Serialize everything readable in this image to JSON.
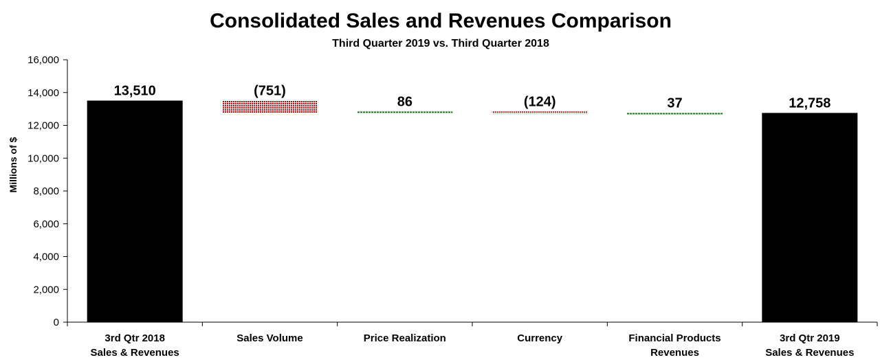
{
  "chart_data": {
    "type": "bar",
    "subtype": "waterfall",
    "title": "Consolidated Sales and Revenues Comparison",
    "subtitle": "Third Quarter 2019 vs. Third Quarter 2018",
    "ylabel": "Millions of $",
    "xlabel": "",
    "ylim": [
      0,
      16000
    ],
    "yticks": [
      "0",
      "2,000",
      "4,000",
      "6,000",
      "8,000",
      "10,000",
      "12,000",
      "14,000",
      "16,000"
    ],
    "ytick_values": [
      0,
      2000,
      4000,
      6000,
      8000,
      10000,
      12000,
      14000,
      16000
    ],
    "grid": false,
    "legend": "none",
    "categories": [
      [
        "3rd Qtr 2018",
        "Sales & Revenues"
      ],
      [
        "Sales Volume"
      ],
      [
        "Price Realization"
      ],
      [
        "Currency"
      ],
      [
        "Financial Products",
        "Revenues"
      ],
      [
        "3rd Qtr 2019",
        "Sales & Revenues"
      ]
    ],
    "bars": [
      {
        "kind": "total",
        "value": 13510,
        "label": "13,510"
      },
      {
        "kind": "decrease",
        "value": -751,
        "label": "(751)"
      },
      {
        "kind": "increase",
        "value": 86,
        "label": "86"
      },
      {
        "kind": "decrease",
        "value": -124,
        "label": "(124)"
      },
      {
        "kind": "increase",
        "value": 37,
        "label": "37"
      },
      {
        "kind": "total",
        "value": 12758,
        "label": "12,758"
      }
    ],
    "colors": {
      "total": "#000000",
      "decrease": "#c00000",
      "increase": "#1a7a1a"
    }
  }
}
